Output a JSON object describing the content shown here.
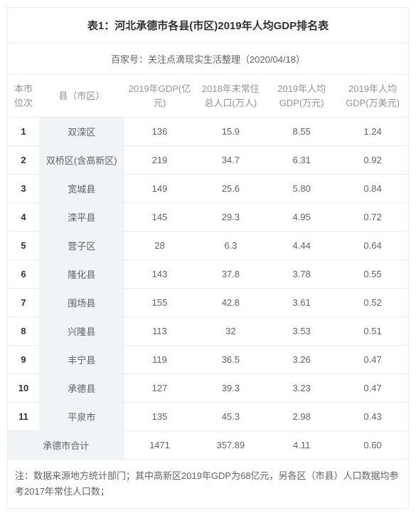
{
  "title": "表1：河北承德市各县(市区)2019年人均GDP排名表",
  "subtitle": "百家号：关注点滴现实生活整理（2020/04/18）",
  "columns": {
    "rank": "本市位次",
    "name": "县（市区）",
    "gdp": "2019年GDP(亿元)",
    "pop": "2018年末常住总人口(万人)",
    "pcgdp": "2019年人均GDP(万元)",
    "pcgdp_usd": "2019年人均GDP(万美元)"
  },
  "rows": [
    {
      "rank": "1",
      "name": "双滦区",
      "gdp": "136",
      "pop": "15.9",
      "pcgdp": "8.55",
      "pcgdp_usd": "1.24"
    },
    {
      "rank": "2",
      "name": "双桥区(含高新区)",
      "gdp": "219",
      "pop": "34.7",
      "pcgdp": "6.31",
      "pcgdp_usd": "0.92"
    },
    {
      "rank": "3",
      "name": "宽城县",
      "gdp": "149",
      "pop": "25.6",
      "pcgdp": "5.80",
      "pcgdp_usd": "0.84"
    },
    {
      "rank": "4",
      "name": "滦平县",
      "gdp": "145",
      "pop": "29.3",
      "pcgdp": "4.95",
      "pcgdp_usd": "0.72"
    },
    {
      "rank": "5",
      "name": "营子区",
      "gdp": "28",
      "pop": "6.3",
      "pcgdp": "4.44",
      "pcgdp_usd": "0.64"
    },
    {
      "rank": "6",
      "name": "隆化县",
      "gdp": "143",
      "pop": "37.8",
      "pcgdp": "3.78",
      "pcgdp_usd": "0.55"
    },
    {
      "rank": "7",
      "name": "围场县",
      "gdp": "155",
      "pop": "42.8",
      "pcgdp": "3.61",
      "pcgdp_usd": "0.52"
    },
    {
      "rank": "8",
      "name": "兴隆县",
      "gdp": "113",
      "pop": "32",
      "pcgdp": "3.53",
      "pcgdp_usd": "0.51"
    },
    {
      "rank": "9",
      "name": "丰宁县",
      "gdp": "119",
      "pop": "36.5",
      "pcgdp": "3.26",
      "pcgdp_usd": "0.47"
    },
    {
      "rank": "10",
      "name": "承德县",
      "gdp": "127",
      "pop": "39.3",
      "pcgdp": "3.23",
      "pcgdp_usd": "0.47"
    },
    {
      "rank": "11",
      "name": "平泉市",
      "gdp": "135",
      "pop": "45.3",
      "pcgdp": "2.98",
      "pcgdp_usd": "0.43"
    }
  ],
  "total": {
    "label": "承德市合计",
    "gdp": "1471",
    "pop": "357.89",
    "pcgdp": "4.11",
    "pcgdp_usd": "0.60"
  },
  "footnote": "注：数据来源地方统计部门；其中高新区2019年GDP为68亿元，另各区（市县）人口数据均参考2017年常住人口数；",
  "style": {
    "border_color": "#ebeef5",
    "name_col_bg": "#f1f4f7",
    "header_text_color": "#909399",
    "body_text_color": "#606266",
    "title_text_color": "#303133",
    "font_size_body": 13,
    "font_size_title": 15
  }
}
